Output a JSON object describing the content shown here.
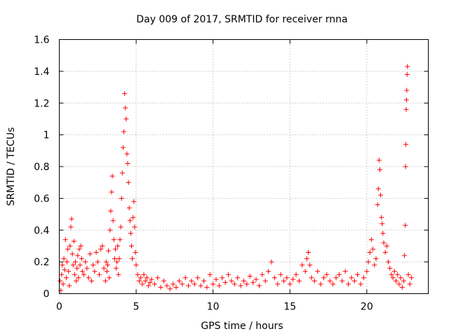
{
  "chart_data": {
    "type": "scatter",
    "title": "Day 009 of 2017, SRMTID for receiver rnna",
    "xlabel": "GPS time / hours",
    "ylabel": "SRMTID / TECUs",
    "xlim": [
      0,
      24
    ],
    "ylim": [
      0,
      1.6
    ],
    "x_ticks": [
      0,
      5,
      10,
      15,
      20
    ],
    "x_tick_labels": [
      "0",
      "5",
      "10",
      "15",
      "20"
    ],
    "y_ticks": [
      0,
      0.2,
      0.4,
      0.6,
      0.8,
      1.0,
      1.2,
      1.4,
      1.6
    ],
    "y_tick_labels": [
      "0",
      "0.2",
      "0.4",
      "0.6",
      "0.8",
      "1",
      "1.2",
      "1.4",
      "1.6"
    ],
    "grid": true,
    "marker": "+",
    "marker_color": "#ff0000",
    "series": [
      {
        "name": "SRMTID",
        "points": [
          [
            0.05,
            0.08
          ],
          [
            0.1,
            0.02
          ],
          [
            0.15,
            0.12
          ],
          [
            0.2,
            0.18
          ],
          [
            0.25,
            0.06
          ],
          [
            0.3,
            0.22
          ],
          [
            0.35,
            0.15
          ],
          [
            0.4,
            0.34
          ],
          [
            0.45,
            0.1
          ],
          [
            0.5,
            0.2
          ],
          [
            0.55,
            0.28
          ],
          [
            0.6,
            0.14
          ],
          [
            0.65,
            0.05
          ],
          [
            0.7,
            0.3
          ],
          [
            0.75,
            0.42
          ],
          [
            0.8,
            0.47
          ],
          [
            0.85,
            0.25
          ],
          [
            0.9,
            0.18
          ],
          [
            0.95,
            0.33
          ],
          [
            1.0,
            0.12
          ],
          [
            1.05,
            0.2
          ],
          [
            1.1,
            0.08
          ],
          [
            1.15,
            0.16
          ],
          [
            1.2,
            0.24
          ],
          [
            1.25,
            0.1
          ],
          [
            1.3,
            0.28
          ],
          [
            1.35,
            0.18
          ],
          [
            1.4,
            0.3
          ],
          [
            1.45,
            0.22
          ],
          [
            1.5,
            0.14
          ],
          [
            1.6,
            0.12
          ],
          [
            1.7,
            0.2
          ],
          [
            1.8,
            0.16
          ],
          [
            1.9,
            0.1
          ],
          [
            2.0,
            0.25
          ],
          [
            2.1,
            0.08
          ],
          [
            2.2,
            0.18
          ],
          [
            2.3,
            0.14
          ],
          [
            2.4,
            0.26
          ],
          [
            2.5,
            0.2
          ],
          [
            2.6,
            0.12
          ],
          [
            2.7,
            0.28
          ],
          [
            2.8,
            0.3
          ],
          [
            2.9,
            0.16
          ],
          [
            3.0,
            0.08
          ],
          [
            3.05,
            0.2
          ],
          [
            3.1,
            0.14
          ],
          [
            3.15,
            0.18
          ],
          [
            3.2,
            0.27
          ],
          [
            3.25,
            0.1
          ],
          [
            3.3,
            0.4
          ],
          [
            3.35,
            0.52
          ],
          [
            3.4,
            0.64
          ],
          [
            3.45,
            0.74
          ],
          [
            3.5,
            0.46
          ],
          [
            3.55,
            0.34
          ],
          [
            3.6,
            0.22
          ],
          [
            3.65,
            0.28
          ],
          [
            3.7,
            0.16
          ],
          [
            3.75,
            0.2
          ],
          [
            3.8,
            0.3
          ],
          [
            3.85,
            0.12
          ],
          [
            3.9,
            0.22
          ],
          [
            3.95,
            0.34
          ],
          [
            4.0,
            0.42
          ],
          [
            4.05,
            0.6
          ],
          [
            4.1,
            0.76
          ],
          [
            4.15,
            0.92
          ],
          [
            4.2,
            1.02
          ],
          [
            4.25,
            1.26
          ],
          [
            4.3,
            1.17
          ],
          [
            4.35,
            1.1
          ],
          [
            4.4,
            0.88
          ],
          [
            4.45,
            0.82
          ],
          [
            4.5,
            0.7
          ],
          [
            4.55,
            0.54
          ],
          [
            4.6,
            0.46
          ],
          [
            4.65,
            0.38
          ],
          [
            4.7,
            0.3
          ],
          [
            4.75,
            0.22
          ],
          [
            4.8,
            0.48
          ],
          [
            4.85,
            0.58
          ],
          [
            4.9,
            0.42
          ],
          [
            4.95,
            0.26
          ],
          [
            5.0,
            0.18
          ],
          [
            5.1,
            0.12
          ],
          [
            5.2,
            0.08
          ],
          [
            5.3,
            0.1
          ],
          [
            5.4,
            0.06
          ],
          [
            5.5,
            0.12
          ],
          [
            5.6,
            0.08
          ],
          [
            5.7,
            0.1
          ],
          [
            5.8,
            0.05
          ],
          [
            5.9,
            0.07
          ],
          [
            6.0,
            0.09
          ],
          [
            6.2,
            0.06
          ],
          [
            6.4,
            0.1
          ],
          [
            6.6,
            0.04
          ],
          [
            6.8,
            0.08
          ],
          [
            7.0,
            0.05
          ],
          [
            7.2,
            0.03
          ],
          [
            7.4,
            0.06
          ],
          [
            7.6,
            0.04
          ],
          [
            7.8,
            0.08
          ],
          [
            8.0,
            0.06
          ],
          [
            8.2,
            0.1
          ],
          [
            8.4,
            0.05
          ],
          [
            8.6,
            0.08
          ],
          [
            8.8,
            0.06
          ],
          [
            9.0,
            0.1
          ],
          [
            9.2,
            0.05
          ],
          [
            9.4,
            0.08
          ],
          [
            9.6,
            0.04
          ],
          [
            9.8,
            0.12
          ],
          [
            10.0,
            0.06
          ],
          [
            10.2,
            0.09
          ],
          [
            10.4,
            0.05
          ],
          [
            10.6,
            0.1
          ],
          [
            10.8,
            0.07
          ],
          [
            11.0,
            0.12
          ],
          [
            11.2,
            0.08
          ],
          [
            11.4,
            0.06
          ],
          [
            11.6,
            0.1
          ],
          [
            11.8,
            0.05
          ],
          [
            12.0,
            0.08
          ],
          [
            12.2,
            0.06
          ],
          [
            12.4,
            0.11
          ],
          [
            12.6,
            0.07
          ],
          [
            12.8,
            0.09
          ],
          [
            13.0,
            0.05
          ],
          [
            13.2,
            0.12
          ],
          [
            13.4,
            0.08
          ],
          [
            13.6,
            0.14
          ],
          [
            13.8,
            0.2
          ],
          [
            14.0,
            0.1
          ],
          [
            14.2,
            0.06
          ],
          [
            14.4,
            0.12
          ],
          [
            14.6,
            0.08
          ],
          [
            14.8,
            0.1
          ],
          [
            15.0,
            0.06
          ],
          [
            15.2,
            0.09
          ],
          [
            15.4,
            0.12
          ],
          [
            15.6,
            0.08
          ],
          [
            15.8,
            0.18
          ],
          [
            16.0,
            0.14
          ],
          [
            16.1,
            0.22
          ],
          [
            16.2,
            0.26
          ],
          [
            16.3,
            0.18
          ],
          [
            16.4,
            0.1
          ],
          [
            16.6,
            0.08
          ],
          [
            16.8,
            0.14
          ],
          [
            17.0,
            0.06
          ],
          [
            17.2,
            0.1
          ],
          [
            17.4,
            0.12
          ],
          [
            17.6,
            0.08
          ],
          [
            17.8,
            0.06
          ],
          [
            18.0,
            0.1
          ],
          [
            18.2,
            0.12
          ],
          [
            18.4,
            0.08
          ],
          [
            18.6,
            0.14
          ],
          [
            18.8,
            0.06
          ],
          [
            19.0,
            0.1
          ],
          [
            19.2,
            0.08
          ],
          [
            19.4,
            0.12
          ],
          [
            19.6,
            0.06
          ],
          [
            19.8,
            0.1
          ],
          [
            20.0,
            0.14
          ],
          [
            20.1,
            0.2
          ],
          [
            20.2,
            0.26
          ],
          [
            20.3,
            0.34
          ],
          [
            20.4,
            0.28
          ],
          [
            20.5,
            0.18
          ],
          [
            20.6,
            0.22
          ],
          [
            20.7,
            0.56
          ],
          [
            20.75,
            0.66
          ],
          [
            20.8,
            0.84
          ],
          [
            20.85,
            0.78
          ],
          [
            20.9,
            0.62
          ],
          [
            20.95,
            0.48
          ],
          [
            21.0,
            0.44
          ],
          [
            21.05,
            0.38
          ],
          [
            21.1,
            0.32
          ],
          [
            21.2,
            0.26
          ],
          [
            21.3,
            0.3
          ],
          [
            21.4,
            0.2
          ],
          [
            21.5,
            0.16
          ],
          [
            21.6,
            0.12
          ],
          [
            21.7,
            0.1
          ],
          [
            21.8,
            0.14
          ],
          [
            21.9,
            0.08
          ],
          [
            22.0,
            0.12
          ],
          [
            22.1,
            0.06
          ],
          [
            22.2,
            0.1
          ],
          [
            22.3,
            0.04
          ],
          [
            22.4,
            0.08
          ],
          [
            22.45,
            0.24
          ],
          [
            22.5,
            0.43
          ],
          [
            22.52,
            0.8
          ],
          [
            22.54,
            0.94
          ],
          [
            22.56,
            1.16
          ],
          [
            22.58,
            1.22
          ],
          [
            22.6,
            1.28
          ],
          [
            22.62,
            1.38
          ],
          [
            22.64,
            1.43
          ],
          [
            22.7,
            0.12
          ],
          [
            22.8,
            0.06
          ],
          [
            22.9,
            0.1
          ]
        ]
      }
    ]
  }
}
